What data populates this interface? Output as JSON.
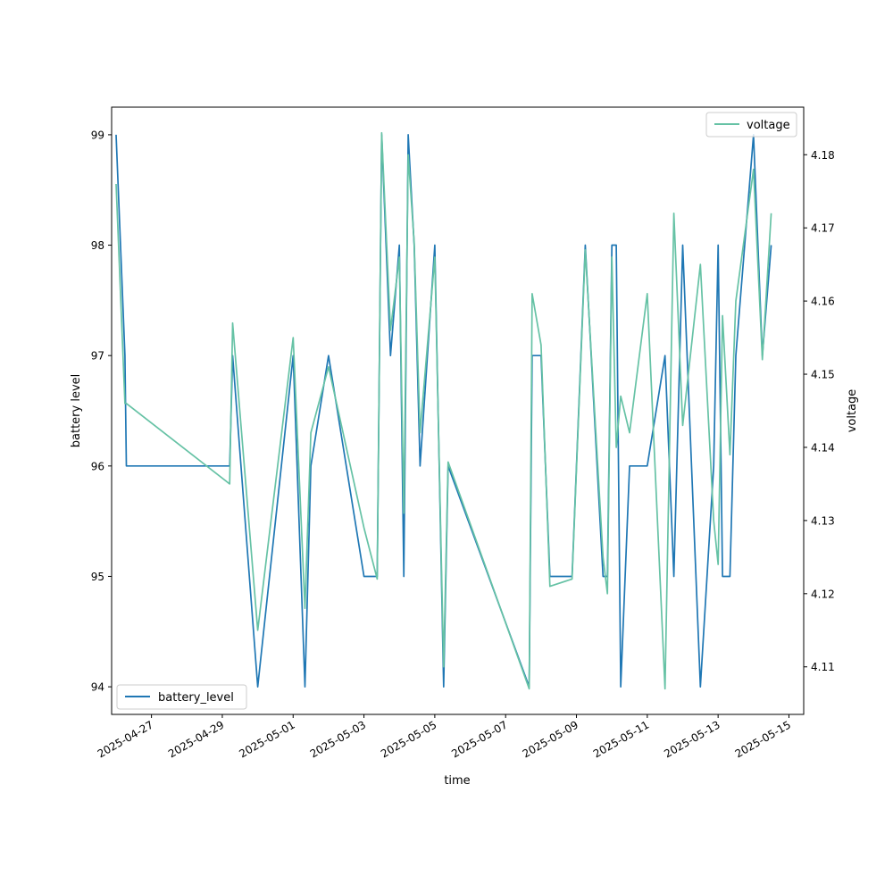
{
  "chart_data": {
    "type": "line",
    "xlabel": "time",
    "ylabel_left": "battery level",
    "ylabel_right": "voltage",
    "x_ticks": [
      "2025-04-27",
      "2025-04-29",
      "2025-05-01",
      "2025-05-03",
      "2025-05-05",
      "2025-05-07",
      "2025-05-09",
      "2025-05-11",
      "2025-05-13",
      "2025-05-15"
    ],
    "y_left_ticks": [
      "94",
      "95",
      "96",
      "97",
      "98",
      "99"
    ],
    "y_right_ticks": [
      "4.11",
      "4.12",
      "4.13",
      "4.14",
      "4.15",
      "4.16",
      "4.17",
      "4.18"
    ],
    "xlim": [
      "2025-04-25T21:00",
      "2025-05-15T10:00"
    ],
    "ylim_left": [
      93.75,
      99.25
    ],
    "ylim_right": [
      4.1035,
      4.1865
    ],
    "legend_left": {
      "position": "lower left"
    },
    "legend_right": {
      "position": "upper right"
    },
    "series": [
      {
        "name": "battery_level",
        "axis": "left",
        "color": "#1f77b4",
        "x": [
          "2025-04-26T00:00",
          "2025-04-26T06:00",
          "2025-04-26T07:00",
          "2025-04-29T05:00",
          "2025-04-29T07:00",
          "2025-04-30T00:00",
          "2025-05-01T00:00",
          "2025-05-01T08:00",
          "2025-05-01T12:00",
          "2025-05-02T00:00",
          "2025-05-03T00:00",
          "2025-05-03T09:00",
          "2025-05-03T12:00",
          "2025-05-03T18:00",
          "2025-05-04T00:00",
          "2025-05-04T03:00",
          "2025-05-04T06:00",
          "2025-05-04T10:00",
          "2025-05-04T14:00",
          "2025-05-05T00:00",
          "2025-05-05T06:00",
          "2025-05-05T09:00",
          "2025-05-07T16:00",
          "2025-05-07T18:00",
          "2025-05-08T00:00",
          "2025-05-08T06:00",
          "2025-05-08T21:00",
          "2025-05-09T06:00",
          "2025-05-09T18:00",
          "2025-05-09T21:00",
          "2025-05-10T00:00",
          "2025-05-10T03:00",
          "2025-05-10T06:00",
          "2025-05-10T12:00",
          "2025-05-11T00:00",
          "2025-05-11T12:00",
          "2025-05-11T18:00",
          "2025-05-12T00:00",
          "2025-05-12T12:00",
          "2025-05-12T21:00",
          "2025-05-13T00:00",
          "2025-05-13T03:00",
          "2025-05-13T08:00",
          "2025-05-13T12:00",
          "2025-05-14T00:00",
          "2025-05-14T06:00",
          "2025-05-14T12:00"
        ],
        "values": [
          99,
          97,
          96,
          96,
          97,
          94,
          97,
          94,
          96,
          97,
          95,
          95,
          99,
          97,
          98,
          95,
          99,
          98,
          96,
          98,
          94,
          96,
          94,
          97,
          97,
          95,
          95,
          98,
          95,
          95,
          98,
          98,
          94,
          96,
          96,
          97,
          95,
          98,
          94,
          96,
          98,
          95,
          95,
          97,
          99,
          97,
          98
        ]
      },
      {
        "name": "voltage",
        "axis": "right",
        "color": "#66c2a5",
        "x": [
          "2025-04-26T00:00",
          "2025-04-26T06:00",
          "2025-04-26T07:00",
          "2025-04-29T05:00",
          "2025-04-29T07:00",
          "2025-04-30T00:00",
          "2025-05-01T00:00",
          "2025-05-01T08:00",
          "2025-05-01T12:00",
          "2025-05-02T00:00",
          "2025-05-03T00:00",
          "2025-05-03T09:00",
          "2025-05-03T12:00",
          "2025-05-03T18:00",
          "2025-05-04T00:00",
          "2025-05-04T03:00",
          "2025-05-04T06:00",
          "2025-05-04T10:00",
          "2025-05-04T14:00",
          "2025-05-05T00:00",
          "2025-05-05T06:00",
          "2025-05-05T09:00",
          "2025-05-07T16:00",
          "2025-05-07T18:00",
          "2025-05-08T00:00",
          "2025-05-08T06:00",
          "2025-05-08T21:00",
          "2025-05-09T06:00",
          "2025-05-09T18:00",
          "2025-05-09T21:00",
          "2025-05-10T00:00",
          "2025-05-10T03:00",
          "2025-05-10T06:00",
          "2025-05-10T12:00",
          "2025-05-11T00:00",
          "2025-05-11T12:00",
          "2025-05-11T18:00",
          "2025-05-12T00:00",
          "2025-05-12T12:00",
          "2025-05-12T21:00",
          "2025-05-13T00:00",
          "2025-05-13T03:00",
          "2025-05-13T08:00",
          "2025-05-13T12:00",
          "2025-05-14T00:00",
          "2025-05-14T06:00",
          "2025-05-14T12:00"
        ],
        "values": [
          4.176,
          4.146,
          4.146,
          4.135,
          4.157,
          4.115,
          4.155,
          4.118,
          4.142,
          4.151,
          4.129,
          4.122,
          4.183,
          4.156,
          4.166,
          4.131,
          4.18,
          4.168,
          4.142,
          4.166,
          4.11,
          4.138,
          4.107,
          4.161,
          4.154,
          4.121,
          4.122,
          4.167,
          4.125,
          4.12,
          4.166,
          4.14,
          4.147,
          4.142,
          4.161,
          4.107,
          4.172,
          4.143,
          4.165,
          4.13,
          4.124,
          4.158,
          4.139,
          4.16,
          4.178,
          4.152,
          4.172
        ]
      }
    ]
  }
}
